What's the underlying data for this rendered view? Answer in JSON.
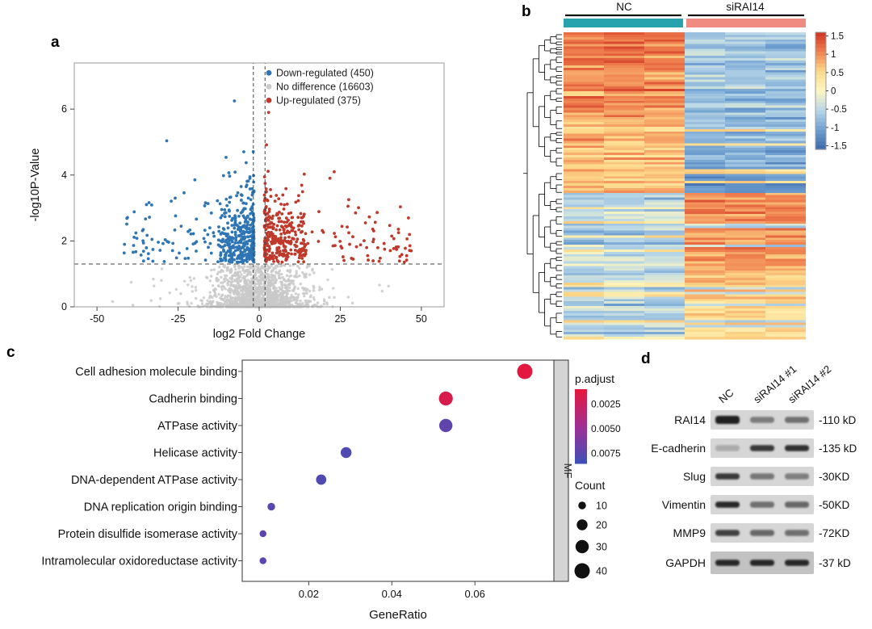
{
  "figure": {
    "panels": {
      "a": "a",
      "b": "b",
      "c": "c",
      "d": "d"
    },
    "background": "#ffffff"
  },
  "chart_data": [
    {
      "type": "scatter",
      "panel": "a",
      "xlabel": "log2 Fold Change",
      "ylabel": "-log10P-Value",
      "xlim": [
        -57,
        57
      ],
      "ylim": [
        0,
        7.4
      ],
      "x_ticks": [
        "-50",
        "-25",
        "0",
        "25",
        "50"
      ],
      "x_tick_values": [
        -50,
        -25,
        0,
        25,
        50
      ],
      "y_ticks": [
        "0",
        "2",
        "4",
        "6"
      ],
      "y_tick_values": [
        0,
        2,
        4,
        6
      ],
      "threshold": {
        "h_line_y": 1.3,
        "v_lines_x": [
          -1.8,
          1.8
        ]
      },
      "legend": [
        {
          "label": "Down-regulated (450)",
          "color": "#2e75b5"
        },
        {
          "label": "No difference (16603)",
          "color": "#c9c9c9"
        },
        {
          "label": "Up-regulated (375)",
          "color": "#bf392b"
        }
      ],
      "series": [
        {
          "name": "Down-regulated",
          "n": 450,
          "color": "#2e75b5"
        },
        {
          "name": "No difference",
          "n": 1500,
          "color": "#c9c9c9"
        },
        {
          "name": "Up-regulated",
          "n": 375,
          "color": "#bf392b"
        }
      ]
    },
    {
      "type": "heatmap",
      "panel": "b",
      "groups": [
        {
          "label": "NC",
          "color": "#27a3ae",
          "cols": 3
        },
        {
          "label": "siRAI14",
          "color": "#ef8b80",
          "cols": 3
        }
      ],
      "rows": 130,
      "cols": 6,
      "colorbar_ticks": [
        "1.5",
        "1",
        "0.5",
        "0",
        "-0.5",
        "-1",
        "-1.5"
      ],
      "colorbar_tick_values": [
        1.5,
        1,
        0.5,
        0,
        -0.5,
        -1,
        -1.5
      ],
      "value_range": [
        -1.6,
        1.6
      ],
      "palette": [
        "#3d69ae",
        "#6f9fd0",
        "#b8d7e8",
        "#fdf6c0",
        "#fdd98a",
        "#f0804f",
        "#cf3222"
      ]
    },
    {
      "type": "scatter",
      "panel": "c",
      "xlabel": "GeneRatio",
      "x_ticks": [
        "0.02",
        "0.04",
        "0.06"
      ],
      "x_tick_values": [
        0.02,
        0.04,
        0.06
      ],
      "xlim": [
        0.004,
        0.079
      ],
      "facet_label": "MF",
      "categories": [
        "Cell adhesion molecule binding",
        "Cadherin binding",
        "ATPase activity",
        "Helicase activity",
        "DNA-dependent ATPase activity",
        "DNA replication origin binding",
        "Protein disulfide isomerase activity",
        "Intramolecular oxidoreductase activity"
      ],
      "gene_ratio": [
        0.072,
        0.053,
        0.053,
        0.029,
        0.023,
        0.011,
        0.009,
        0.009
      ],
      "p_adjust": [
        0.0012,
        0.0018,
        0.0072,
        0.0078,
        0.0078,
        0.0075,
        0.0073,
        0.0073
      ],
      "count": [
        40,
        33,
        30,
        20,
        18,
        10,
        8,
        8
      ],
      "legend_p": {
        "title": "p.adjust",
        "tick_labels": [
          "0.0025",
          "0.0050",
          "0.0075"
        ],
        "tick_values": [
          0.0025,
          0.005,
          0.0075
        ],
        "domain": [
          0.001,
          0.0085
        ]
      },
      "legend_count": {
        "title": "Count",
        "sizes": [
          10,
          20,
          30,
          40
        ],
        "labels": [
          "10",
          "20",
          "30",
          "40"
        ]
      }
    },
    {
      "type": "table",
      "panel": "d",
      "lanes": [
        "NC",
        "siRAI14 #1",
        "siRAI14 #2"
      ],
      "proteins": [
        {
          "name": "RAI14",
          "weight": "-110 kD",
          "bands": [
            1.0,
            0.42,
            0.5
          ]
        },
        {
          "name": "E-cadherin",
          "weight": "-135 kD",
          "bands": [
            0.12,
            0.85,
            0.9
          ]
        },
        {
          "name": "Slug",
          "weight": "-30KD",
          "bands": [
            0.85,
            0.45,
            0.4
          ]
        },
        {
          "name": "Vimentin",
          "weight": "-50KD",
          "bands": [
            0.95,
            0.5,
            0.55
          ]
        },
        {
          "name": "MMP9",
          "weight": "-72KD",
          "bands": [
            0.8,
            0.55,
            0.5
          ]
        },
        {
          "name": "GAPDH",
          "weight": "-37 kD",
          "bands": [
            0.95,
            0.95,
            0.95
          ]
        }
      ]
    }
  ]
}
